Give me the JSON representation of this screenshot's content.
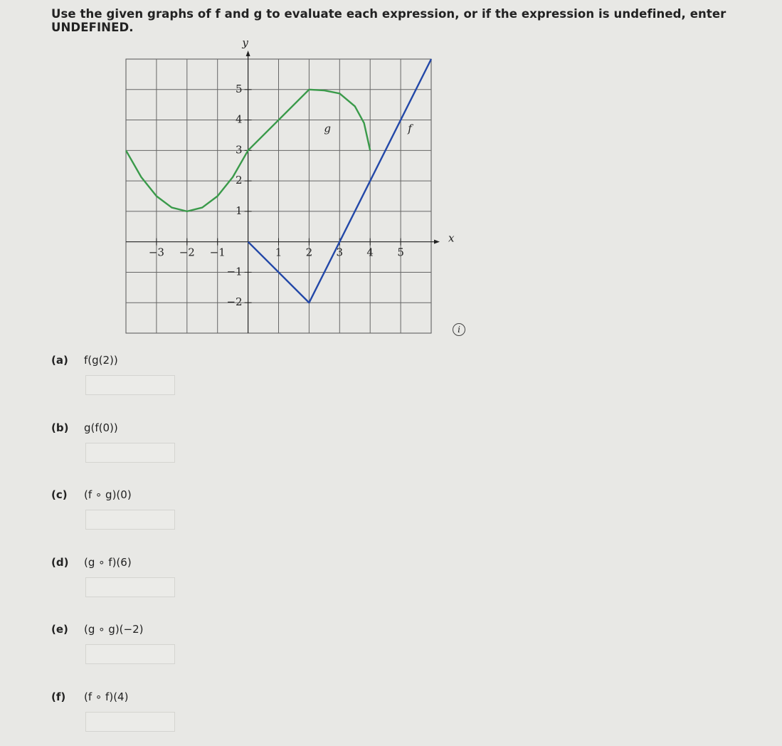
{
  "instruction": "Use the given graphs of f and g to evaluate each expression, or if the expression is undefined, enter UNDEFINED.",
  "chart_data": {
    "type": "line",
    "xlabel": "x",
    "ylabel": "y",
    "xlim": [
      -4,
      6
    ],
    "ylim": [
      -3,
      6
    ],
    "xticks": [
      {
        "value": -3,
        "label": "−3"
      },
      {
        "value": -2,
        "label": "−2"
      },
      {
        "value": -1,
        "label": "−1"
      },
      1,
      2,
      3,
      4,
      5
    ],
    "yticks": [
      {
        "value": -2,
        "label": "−2"
      },
      {
        "value": -1,
        "label": "−1"
      },
      1,
      2,
      3,
      4,
      5
    ],
    "grid": true,
    "series": [
      {
        "name": "g",
        "color": "#3a9a4a",
        "x": [
          -4,
          -3.5,
          -3,
          -2.5,
          -2,
          -1.5,
          -1,
          -0.5,
          0,
          2,
          2.5,
          3,
          3.5,
          3.8,
          4
        ],
        "values": [
          3,
          2.125,
          1.5,
          1.125,
          1,
          1.125,
          1.5,
          2.125,
          3,
          5,
          4.97,
          4.87,
          4.45,
          3.9,
          3
        ]
      },
      {
        "name": "f",
        "color": "#2348a8",
        "x": [
          0,
          2,
          6
        ],
        "values": [
          0,
          -2,
          6
        ]
      }
    ]
  },
  "questions": [
    {
      "label": "(a)",
      "expression": "f(g(2))"
    },
    {
      "label": "(b)",
      "expression": "g(f(0))"
    },
    {
      "label": "(c)",
      "expression": "(f ∘ g)(0)"
    },
    {
      "label": "(d)",
      "expression": "(g ∘ f)(6)"
    },
    {
      "label": "(e)",
      "expression": "(g ∘ g)(−2)"
    },
    {
      "label": "(f)",
      "expression": "(f ∘ f)(4)"
    }
  ]
}
